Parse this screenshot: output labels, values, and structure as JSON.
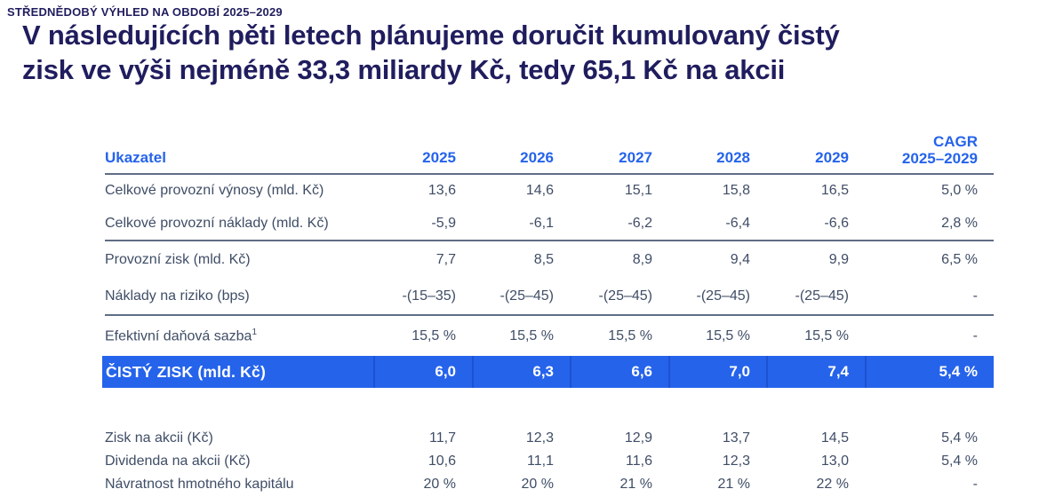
{
  "page": {
    "eyebrow": "STŘEDNĚDOBÝ VÝHLED NA OBDOBÍ 2025–2029",
    "headline_lines": [
      "V následujících pěti letech plánujeme doručit kumulovaný čistý",
      "zisk ve výši nejméně 33,3 miliardy Kč, tedy 65,1 Kč na akcii"
    ]
  },
  "colors": {
    "accent_blue": "#2563eb",
    "highlight_row_bg": "#2563eb",
    "highlight_row_text": "#ffffff",
    "highlight_separator": "#1c52d0",
    "headline_navy": "#201d5e",
    "body_text": "#3f4d66",
    "divider": "#5f6d85"
  },
  "table": {
    "header": {
      "label": "Ukazatel",
      "years": [
        "2025",
        "2026",
        "2027",
        "2028",
        "2029"
      ],
      "cagr_line1": "CAGR",
      "cagr_line2": "2025–2029"
    },
    "groups": [
      {
        "rows": [
          {
            "label": "Celkové provozní výnosy (mld. Kč)",
            "values": [
              "13,6",
              "14,6",
              "15,1",
              "15,8",
              "16,5",
              "5,0 %"
            ]
          },
          {
            "label": "Celkové provozní náklady (mld. Kč)",
            "values": [
              "-5,9",
              "-6,1",
              "-6,2",
              "-6,4",
              "-6,6",
              "2,8 %"
            ]
          }
        ]
      },
      {
        "rows": [
          {
            "label": "Provozní zisk (mld. Kč)",
            "values": [
              "7,7",
              "8,5",
              "8,9",
              "9,4",
              "9,9",
              "6,5 %"
            ]
          },
          {
            "label": "Náklady na riziko (bps)",
            "values": [
              "-(15–35)",
              "-(25–45)",
              "-(25–45)",
              "-(25–45)",
              "-(25–45)",
              "-"
            ]
          }
        ]
      },
      {
        "rows": [
          {
            "label": "Efektivní daňová sazba",
            "label_sup": "1",
            "values": [
              "15,5 %",
              "15,5 %",
              "15,5 %",
              "15,5 %",
              "15,5 %",
              "-"
            ]
          }
        ]
      }
    ],
    "highlight": {
      "label": "ČISTÝ ZISK (mld. Kč)",
      "values": [
        "6,0",
        "6,3",
        "6,6",
        "7,0",
        "7,4",
        "5,4 %"
      ]
    },
    "footer_rows": [
      {
        "label": "Zisk na akcii (Kč)",
        "values": [
          "11,7",
          "12,3",
          "12,9",
          "13,7",
          "14,5",
          "5,4 %"
        ]
      },
      {
        "label": "Dividenda na akcii (Kč)",
        "values": [
          "10,6",
          "11,1",
          "11,6",
          "12,3",
          "13,0",
          "5,4 %"
        ]
      },
      {
        "label": "Návratnost hmotného kapitálu",
        "values": [
          "20 %",
          "20 %",
          "21 %",
          "21 %",
          "22 %",
          "-"
        ]
      }
    ]
  },
  "chart_data": {
    "type": "table",
    "title": "Střednědobý výhled na období 2025–2029",
    "columns": [
      "Ukazatel",
      "2025",
      "2026",
      "2027",
      "2028",
      "2029",
      "CAGR 2025–2029"
    ],
    "rows": [
      [
        "Celkové provozní výnosy (mld. Kč)",
        "13,6",
        "14,6",
        "15,1",
        "15,8",
        "16,5",
        "5,0 %"
      ],
      [
        "Celkové provozní náklady (mld. Kč)",
        "-5,9",
        "-6,1",
        "-6,2",
        "-6,4",
        "-6,6",
        "2,8 %"
      ],
      [
        "Provozní zisk (mld. Kč)",
        "7,7",
        "8,5",
        "8,9",
        "9,4",
        "9,9",
        "6,5 %"
      ],
      [
        "Náklady na riziko (bps)",
        "-(15–35)",
        "-(25–45)",
        "-(25–45)",
        "-(25–45)",
        "-(25–45)",
        "-"
      ],
      [
        "Efektivní daňová sazba¹",
        "15,5 %",
        "15,5 %",
        "15,5 %",
        "15,5 %",
        "15,5 %",
        "-"
      ],
      [
        "ČISTÝ ZISK (mld. Kč)",
        "6,0",
        "6,3",
        "6,6",
        "7,0",
        "7,4",
        "5,4 %"
      ],
      [
        "Zisk na akcii (Kč)",
        "11,7",
        "12,3",
        "12,9",
        "13,7",
        "14,5",
        "5,4 %"
      ],
      [
        "Dividenda na akcii (Kč)",
        "10,6",
        "11,1",
        "11,6",
        "12,3",
        "13,0",
        "5,4 %"
      ],
      [
        "Návratnost hmotného kapitálu",
        "20 %",
        "20 %",
        "21 %",
        "21 %",
        "22 %",
        "-"
      ]
    ]
  }
}
